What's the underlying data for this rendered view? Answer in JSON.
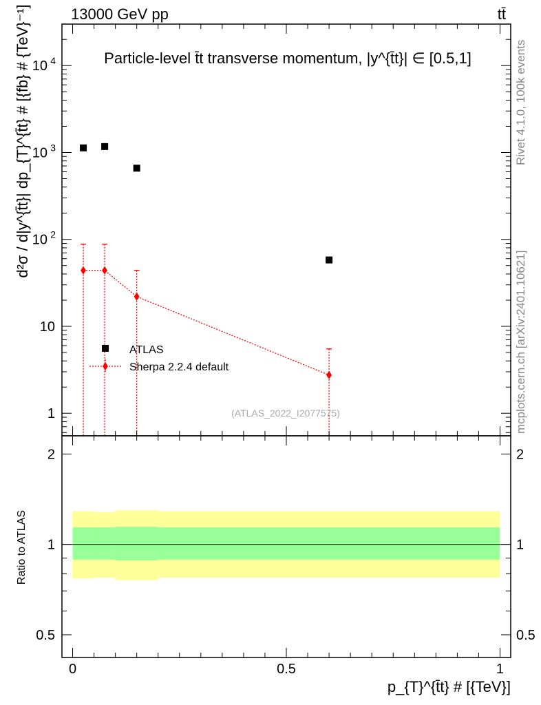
{
  "header": {
    "energy_label": "13000 GeV pp",
    "process_label": "tt̄"
  },
  "side_labels": {
    "rivet": "Rivet 4.1.0,  100k events",
    "source": "mcplots.cern.ch [arXiv:2401.10621]"
  },
  "watermark": "(ATLAS_2022_I2077575)",
  "chart_data": {
    "type": "scatter",
    "title": "Particle-level t̄t transverse momentum, |y^{t̄t}| ∈ [0.5,1]",
    "ylabel": "d²σ / d|y^{t̄t}| dp_{T}^{t̄t} # [{fb} # {TeV}⁻¹]",
    "xlabel": "p_{T}^{t̄t} # [{TeV}]",
    "x_scale": "linear",
    "y_scale": "log",
    "xlim": [
      -0.025,
      1.025
    ],
    "ylim": [
      0.55,
      30000
    ],
    "x_ticks": [
      {
        "value": 0,
        "label": "0"
      },
      {
        "value": 0.5,
        "label": "0.5"
      },
      {
        "value": 1,
        "label": "1"
      }
    ],
    "y_ticks": [
      {
        "value": 1,
        "label": "1"
      },
      {
        "value": 10,
        "label": "10"
      },
      {
        "value": 100,
        "label": "10",
        "exp": "2"
      },
      {
        "value": 1000,
        "label": "10",
        "exp": "3"
      },
      {
        "value": 10000,
        "label": "10",
        "exp": "4"
      }
    ],
    "series": [
      {
        "name": "ATLAS",
        "marker": "square",
        "color": "#000000",
        "x": [
          0.025,
          0.075,
          0.15,
          0.6
        ],
        "y": [
          1130,
          1170,
          660,
          58
        ]
      },
      {
        "name": "Sherpa 2.2.4 default",
        "marker": "diamond",
        "color": "#ff0000",
        "line": "dotted",
        "x": [
          0.025,
          0.075,
          0.15,
          0.6
        ],
        "y": [
          44,
          44,
          22,
          2.75
        ],
        "y_err_up": [
          88,
          88,
          44,
          5.5
        ],
        "y_err_down": [
          0.3,
          0.3,
          0.3,
          0.3
        ]
      }
    ],
    "legend_placement": "bottom-left",
    "ratio": {
      "ylabel": "Ratio to ATLAS",
      "ylim": [
        0.42,
        2.3
      ],
      "y_ticks": [
        {
          "value": 0.5,
          "label": "0.5"
        },
        {
          "value": 1,
          "label": "1"
        },
        {
          "value": 2,
          "label": "2"
        }
      ],
      "reference_line": 1,
      "bands": {
        "bin_edges": [
          0,
          0.05,
          0.1,
          0.2,
          1.0
        ],
        "inner_low": [
          0.89,
          0.89,
          0.885,
          0.89
        ],
        "inner_high": [
          1.14,
          1.14,
          1.145,
          1.14
        ],
        "outer_low": [
          0.77,
          0.775,
          0.76,
          0.775
        ],
        "outer_high": [
          1.29,
          1.28,
          1.3,
          1.29
        ],
        "inner_color": "#99ff99",
        "outer_color": "#ffff99"
      }
    }
  }
}
